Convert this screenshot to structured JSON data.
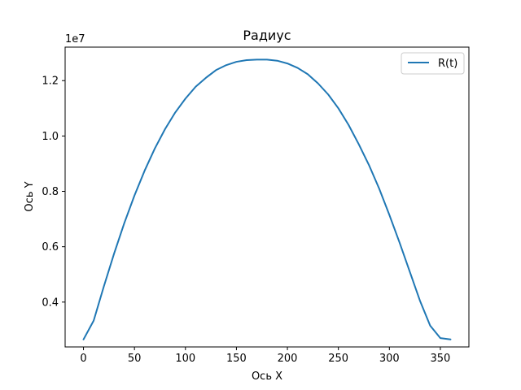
{
  "chart_data": {
    "type": "line",
    "title": "Радиус",
    "xlabel": "Ось X",
    "ylabel": "Ось Y",
    "y_offset_label": "1e7",
    "xlim": [
      -18,
      378
    ],
    "ylim": [
      2.38,
      13.21
    ],
    "y_scale_exponent": 7,
    "x_ticks": [
      0,
      50,
      100,
      150,
      200,
      250,
      300,
      350
    ],
    "x_tick_labels": [
      "0",
      "50",
      "100",
      "150",
      "200",
      "250",
      "300",
      "350"
    ],
    "y_ticks": [
      4,
      6,
      8,
      10,
      12
    ],
    "y_tick_labels": [
      "0.4",
      "0.6",
      "0.8",
      "1.0",
      "1.2"
    ],
    "legend": {
      "position": "top-right",
      "entries": [
        "R(t)"
      ]
    },
    "grid": false,
    "series": [
      {
        "name": "R(t)",
        "color": "#1f77b4",
        "x": [
          0,
          10,
          20,
          30,
          40,
          50,
          60,
          70,
          80,
          90,
          100,
          110,
          120,
          130,
          140,
          150,
          160,
          170,
          180,
          190,
          200,
          210,
          220,
          230,
          240,
          250,
          260,
          270,
          280,
          290,
          300,
          310,
          320,
          330,
          340,
          350,
          360
        ],
        "y": [
          2.65,
          3.33,
          4.57,
          5.75,
          6.85,
          7.85,
          8.75,
          9.55,
          10.25,
          10.85,
          11.35,
          11.78,
          12.1,
          12.38,
          12.56,
          12.68,
          12.74,
          12.76,
          12.76,
          12.72,
          12.62,
          12.46,
          12.23,
          11.9,
          11.5,
          11.0,
          10.4,
          9.7,
          8.95,
          8.1,
          7.15,
          6.15,
          5.1,
          4.05,
          3.15,
          2.7,
          2.65
        ]
      }
    ]
  }
}
